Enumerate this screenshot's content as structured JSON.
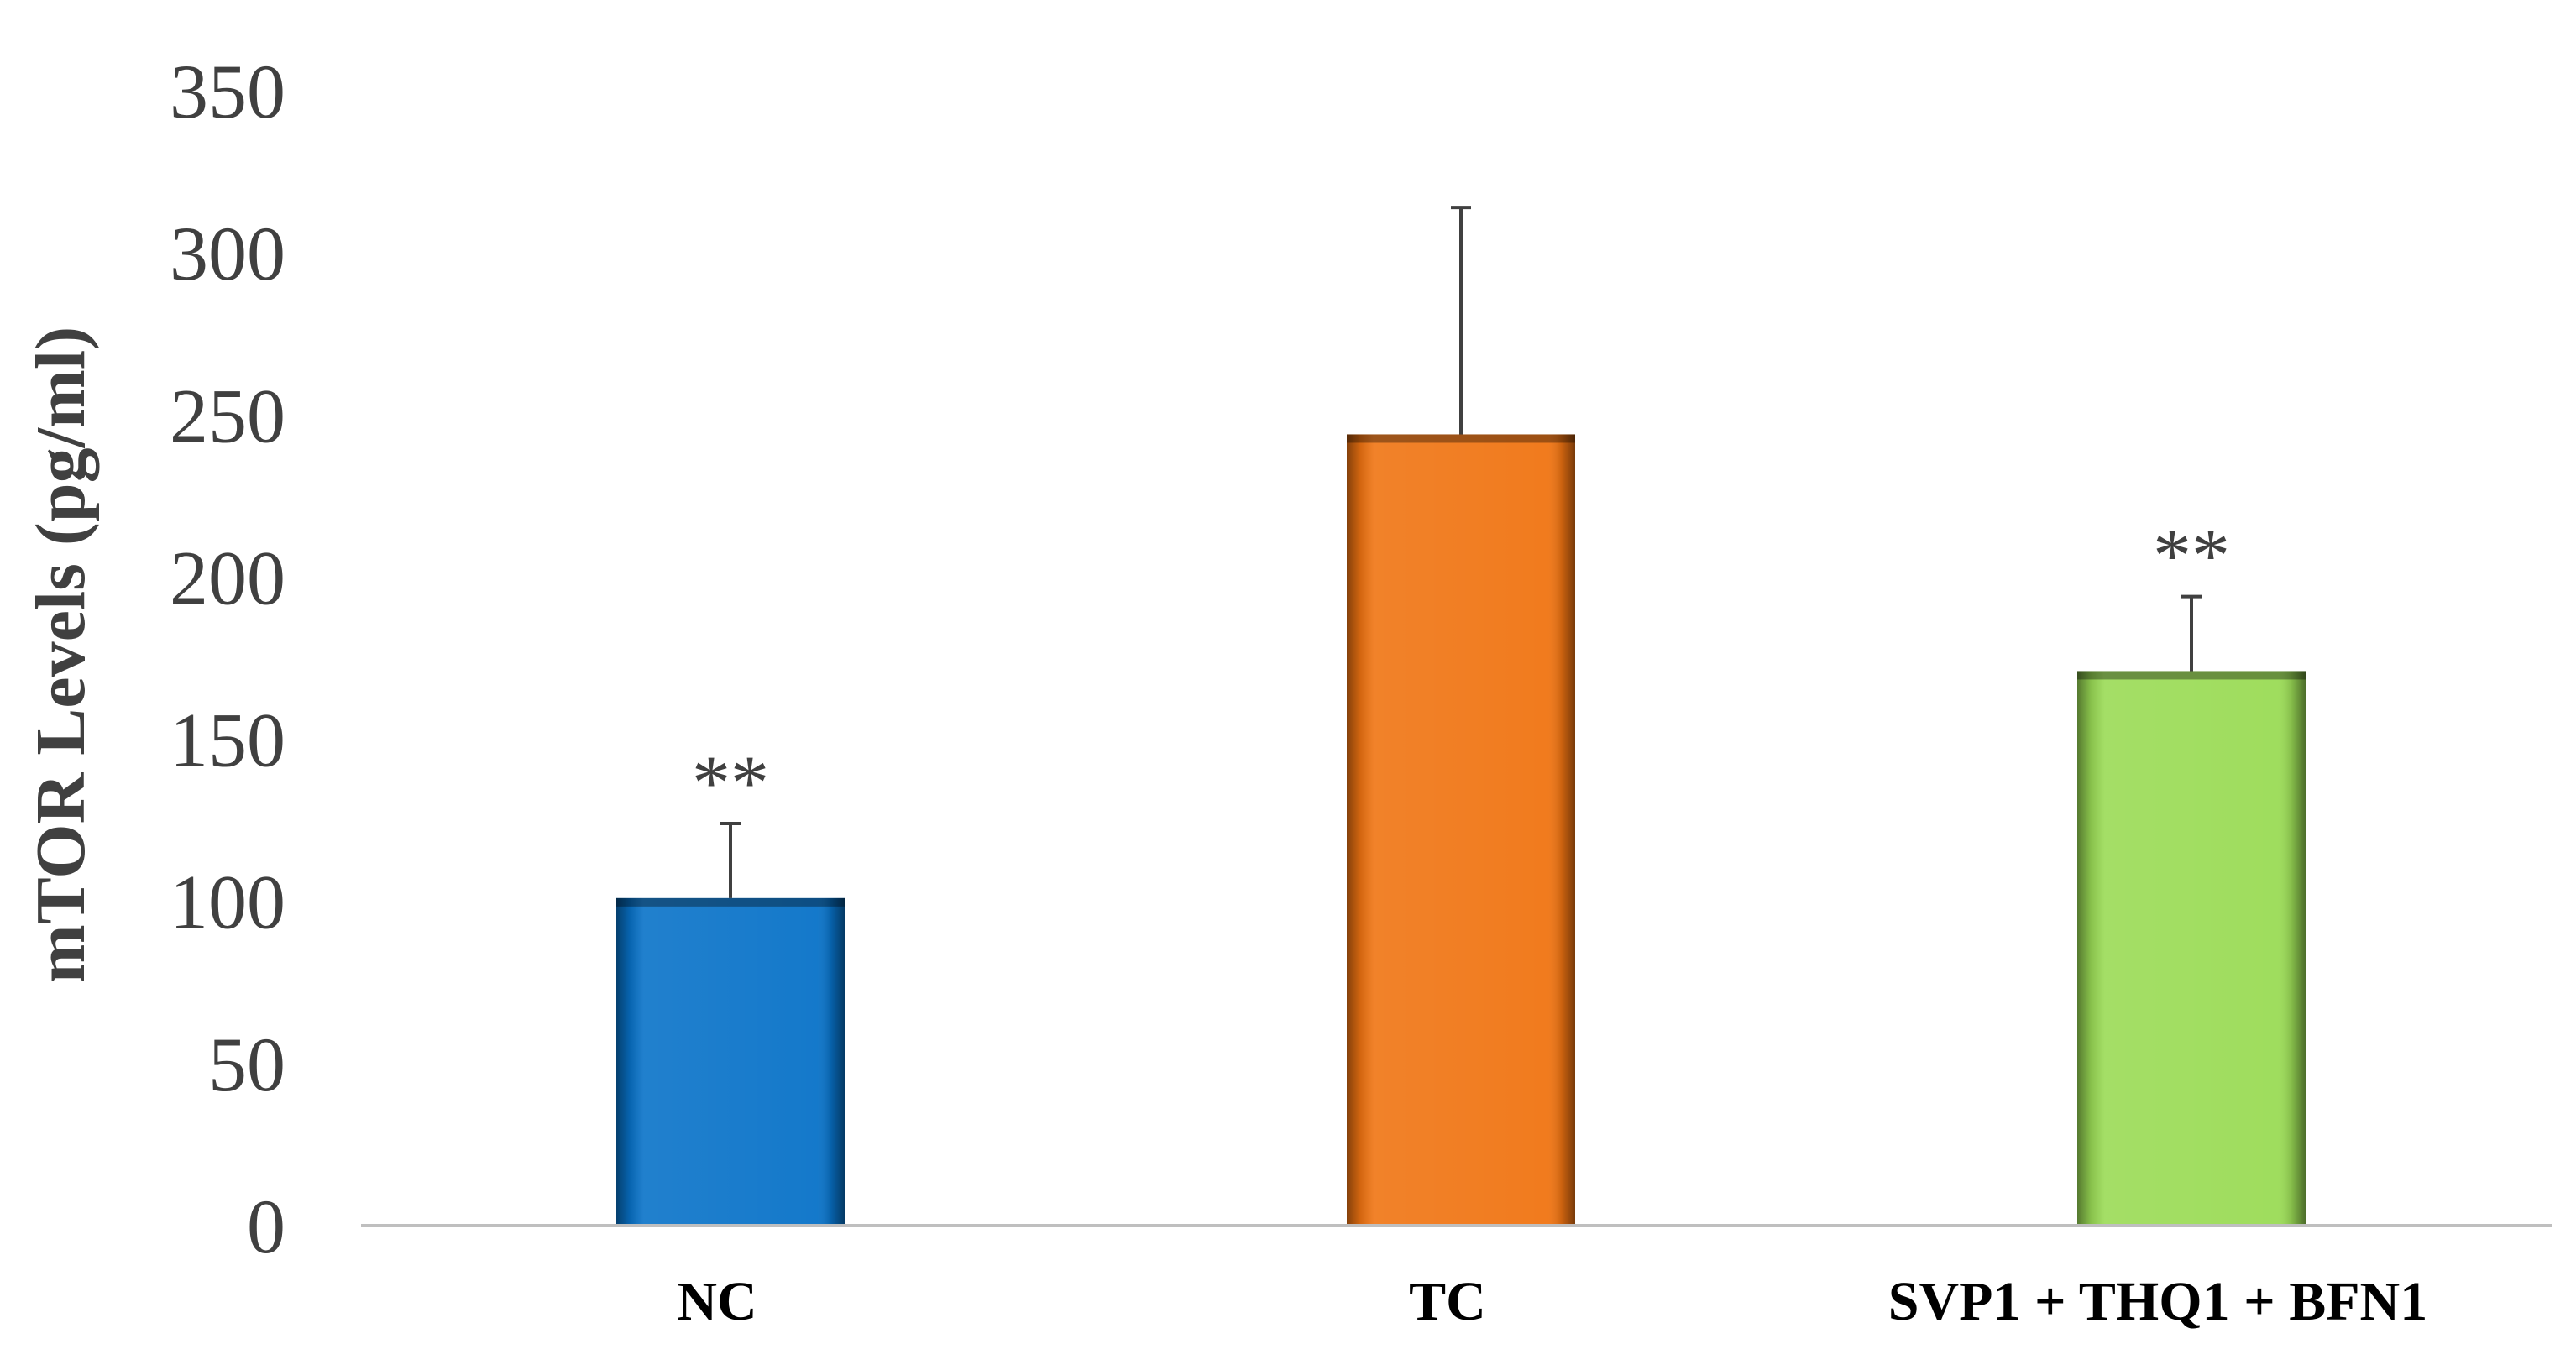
{
  "chart_data": {
    "type": "bar",
    "title": "",
    "xlabel": "",
    "ylabel": "mTOR Levels (pg/ml)",
    "ylim": [
      0,
      350
    ],
    "yticks": [
      0,
      50,
      100,
      150,
      200,
      250,
      300,
      350
    ],
    "categories": [
      "NC",
      "TC",
      "SVP1 + THQ1 + BFN1"
    ],
    "values": [
      101,
      244,
      171
    ],
    "error_upper": [
      23,
      70,
      23
    ],
    "significance": [
      "**",
      "",
      "**"
    ],
    "colors": [
      "#0872C8",
      "#F07412",
      "#9ADB55"
    ],
    "grid": false,
    "legend": "none"
  }
}
